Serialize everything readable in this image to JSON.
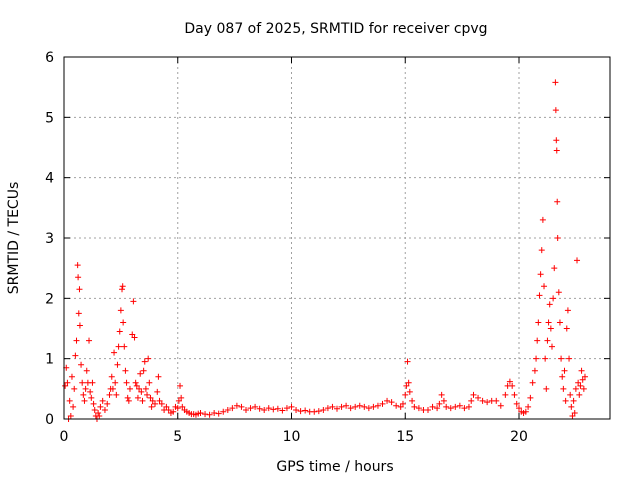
{
  "chart_data": {
    "type": "scatter",
    "title": "Day 087 of 2025, SRMTID for receiver cpvg",
    "xlabel": "GPS time / hours",
    "ylabel": "SRMTID / TECUs",
    "xlim": [
      0,
      24
    ],
    "ylim": [
      0,
      6
    ],
    "xticks": [
      0,
      5,
      10,
      15,
      20
    ],
    "yticks": [
      0,
      1,
      2,
      3,
      4,
      5,
      6
    ],
    "grid": true,
    "marker": "+",
    "color": "#ff0000",
    "series": [
      {
        "name": "SRMTID",
        "points": [
          [
            0.05,
            0.55
          ],
          [
            0.1,
            0.85
          ],
          [
            0.15,
            0.6
          ],
          [
            0.2,
            0.0
          ],
          [
            0.25,
            0.3
          ],
          [
            0.3,
            0.05
          ],
          [
            0.35,
            0.7
          ],
          [
            0.4,
            0.2
          ],
          [
            0.45,
            0.5
          ],
          [
            0.5,
            1.05
          ],
          [
            0.55,
            1.3
          ],
          [
            0.6,
            2.55
          ],
          [
            0.62,
            2.35
          ],
          [
            0.65,
            1.75
          ],
          [
            0.68,
            2.15
          ],
          [
            0.7,
            1.55
          ],
          [
            0.75,
            0.9
          ],
          [
            0.8,
            0.6
          ],
          [
            0.85,
            0.4
          ],
          [
            0.9,
            0.3
          ],
          [
            0.95,
            0.5
          ],
          [
            1.0,
            0.8
          ],
          [
            1.05,
            0.6
          ],
          [
            1.1,
            1.3
          ],
          [
            1.15,
            0.45
          ],
          [
            1.2,
            0.35
          ],
          [
            1.25,
            0.6
          ],
          [
            1.3,
            0.25
          ],
          [
            1.35,
            0.15
          ],
          [
            1.4,
            0.05
          ],
          [
            1.45,
            0.0
          ],
          [
            1.5,
            0.1
          ],
          [
            1.55,
            0.05
          ],
          [
            1.6,
            0.2
          ],
          [
            1.7,
            0.3
          ],
          [
            1.8,
            0.15
          ],
          [
            1.9,
            0.25
          ],
          [
            2.0,
            0.4
          ],
          [
            2.05,
            0.5
          ],
          [
            2.1,
            0.7
          ],
          [
            2.15,
            0.5
          ],
          [
            2.2,
            1.1
          ],
          [
            2.25,
            0.6
          ],
          [
            2.3,
            0.4
          ],
          [
            2.35,
            0.9
          ],
          [
            2.4,
            1.2
          ],
          [
            2.45,
            1.45
          ],
          [
            2.5,
            1.8
          ],
          [
            2.55,
            2.15
          ],
          [
            2.58,
            2.2
          ],
          [
            2.6,
            1.6
          ],
          [
            2.65,
            1.2
          ],
          [
            2.7,
            0.8
          ],
          [
            2.75,
            0.6
          ],
          [
            2.8,
            0.35
          ],
          [
            2.85,
            0.3
          ],
          [
            2.9,
            0.5
          ],
          [
            3.0,
            1.4
          ],
          [
            3.05,
            1.95
          ],
          [
            3.1,
            1.35
          ],
          [
            3.15,
            0.6
          ],
          [
            3.2,
            0.55
          ],
          [
            3.25,
            0.35
          ],
          [
            3.3,
            0.5
          ],
          [
            3.35,
            0.75
          ],
          [
            3.4,
            0.45
          ],
          [
            3.45,
            0.3
          ],
          [
            3.5,
            0.8
          ],
          [
            3.55,
            0.95
          ],
          [
            3.6,
            0.5
          ],
          [
            3.65,
            0.4
          ],
          [
            3.7,
            1.0
          ],
          [
            3.75,
            0.6
          ],
          [
            3.8,
            0.35
          ],
          [
            3.85,
            0.2
          ],
          [
            3.9,
            0.3
          ],
          [
            4.0,
            0.25
          ],
          [
            4.1,
            0.45
          ],
          [
            4.15,
            0.7
          ],
          [
            4.2,
            0.3
          ],
          [
            4.3,
            0.25
          ],
          [
            4.4,
            0.15
          ],
          [
            4.5,
            0.2
          ],
          [
            4.6,
            0.15
          ],
          [
            4.7,
            0.1
          ],
          [
            4.8,
            0.12
          ],
          [
            4.9,
            0.2
          ],
          [
            5.0,
            0.18
          ],
          [
            5.05,
            0.3
          ],
          [
            5.1,
            0.55
          ],
          [
            5.15,
            0.35
          ],
          [
            5.2,
            0.2
          ],
          [
            5.3,
            0.15
          ],
          [
            5.4,
            0.12
          ],
          [
            5.5,
            0.1
          ],
          [
            5.6,
            0.08
          ],
          [
            5.7,
            0.08
          ],
          [
            5.8,
            0.07
          ],
          [
            5.9,
            0.09
          ],
          [
            6.0,
            0.1
          ],
          [
            6.2,
            0.08
          ],
          [
            6.4,
            0.07
          ],
          [
            6.6,
            0.1
          ],
          [
            6.8,
            0.09
          ],
          [
            7.0,
            0.12
          ],
          [
            7.2,
            0.15
          ],
          [
            7.4,
            0.18
          ],
          [
            7.6,
            0.22
          ],
          [
            7.8,
            0.2
          ],
          [
            8.0,
            0.15
          ],
          [
            8.2,
            0.18
          ],
          [
            8.4,
            0.2
          ],
          [
            8.6,
            0.17
          ],
          [
            8.8,
            0.15
          ],
          [
            9.0,
            0.18
          ],
          [
            9.2,
            0.16
          ],
          [
            9.4,
            0.17
          ],
          [
            9.6,
            0.14
          ],
          [
            9.8,
            0.18
          ],
          [
            10.0,
            0.2
          ],
          [
            10.2,
            0.15
          ],
          [
            10.4,
            0.13
          ],
          [
            10.6,
            0.14
          ],
          [
            10.8,
            0.12
          ],
          [
            11.0,
            0.12
          ],
          [
            11.2,
            0.13
          ],
          [
            11.4,
            0.15
          ],
          [
            11.6,
            0.18
          ],
          [
            11.8,
            0.2
          ],
          [
            12.0,
            0.17
          ],
          [
            12.2,
            0.2
          ],
          [
            12.4,
            0.22
          ],
          [
            12.6,
            0.18
          ],
          [
            12.8,
            0.2
          ],
          [
            13.0,
            0.22
          ],
          [
            13.2,
            0.2
          ],
          [
            13.4,
            0.18
          ],
          [
            13.6,
            0.2
          ],
          [
            13.8,
            0.22
          ],
          [
            14.0,
            0.25
          ],
          [
            14.2,
            0.3
          ],
          [
            14.4,
            0.28
          ],
          [
            14.6,
            0.22
          ],
          [
            14.8,
            0.2
          ],
          [
            14.9,
            0.25
          ],
          [
            15.0,
            0.4
          ],
          [
            15.05,
            0.55
          ],
          [
            15.1,
            0.95
          ],
          [
            15.15,
            0.6
          ],
          [
            15.2,
            0.45
          ],
          [
            15.3,
            0.3
          ],
          [
            15.4,
            0.2
          ],
          [
            15.6,
            0.18
          ],
          [
            15.8,
            0.15
          ],
          [
            16.0,
            0.15
          ],
          [
            16.2,
            0.2
          ],
          [
            16.4,
            0.18
          ],
          [
            16.5,
            0.25
          ],
          [
            16.6,
            0.4
          ],
          [
            16.7,
            0.3
          ],
          [
            16.8,
            0.2
          ],
          [
            17.0,
            0.18
          ],
          [
            17.2,
            0.2
          ],
          [
            17.4,
            0.22
          ],
          [
            17.6,
            0.18
          ],
          [
            17.8,
            0.2
          ],
          [
            17.9,
            0.3
          ],
          [
            18.0,
            0.4
          ],
          [
            18.2,
            0.35
          ],
          [
            18.4,
            0.3
          ],
          [
            18.6,
            0.28
          ],
          [
            18.8,
            0.3
          ],
          [
            19.0,
            0.3
          ],
          [
            19.2,
            0.22
          ],
          [
            19.4,
            0.4
          ],
          [
            19.5,
            0.55
          ],
          [
            19.6,
            0.62
          ],
          [
            19.7,
            0.55
          ],
          [
            19.8,
            0.4
          ],
          [
            19.9,
            0.25
          ],
          [
            20.0,
            0.18
          ],
          [
            20.1,
            0.12
          ],
          [
            20.2,
            0.1
          ],
          [
            20.3,
            0.12
          ],
          [
            20.4,
            0.2
          ],
          [
            20.5,
            0.35
          ],
          [
            20.6,
            0.6
          ],
          [
            20.7,
            0.8
          ],
          [
            20.75,
            1.0
          ],
          [
            20.8,
            1.3
          ],
          [
            20.85,
            1.6
          ],
          [
            20.9,
            2.05
          ],
          [
            20.95,
            2.4
          ],
          [
            21.0,
            2.8
          ],
          [
            21.05,
            3.3
          ],
          [
            21.1,
            2.2
          ],
          [
            21.15,
            1.0
          ],
          [
            21.2,
            0.5
          ],
          [
            21.25,
            1.3
          ],
          [
            21.3,
            1.6
          ],
          [
            21.35,
            1.9
          ],
          [
            21.4,
            1.5
          ],
          [
            21.45,
            1.2
          ],
          [
            21.5,
            2.0
          ],
          [
            21.55,
            2.5
          ],
          [
            21.6,
            5.58
          ],
          [
            21.62,
            5.12
          ],
          [
            21.64,
            4.62
          ],
          [
            21.66,
            4.45
          ],
          [
            21.68,
            3.6
          ],
          [
            21.7,
            3.0
          ],
          [
            21.75,
            2.1
          ],
          [
            21.8,
            1.6
          ],
          [
            21.85,
            1.0
          ],
          [
            21.9,
            0.7
          ],
          [
            21.95,
            0.5
          ],
          [
            22.0,
            0.8
          ],
          [
            22.05,
            0.3
          ],
          [
            22.1,
            1.5
          ],
          [
            22.15,
            1.8
          ],
          [
            22.2,
            1.0
          ],
          [
            22.25,
            0.4
          ],
          [
            22.3,
            0.2
          ],
          [
            22.35,
            0.05
          ],
          [
            22.4,
            0.3
          ],
          [
            22.45,
            0.1
          ],
          [
            22.5,
            0.5
          ],
          [
            22.55,
            2.63
          ],
          [
            22.6,
            0.6
          ],
          [
            22.65,
            0.4
          ],
          [
            22.7,
            0.55
          ],
          [
            22.75,
            0.8
          ],
          [
            22.8,
            0.65
          ],
          [
            22.85,
            0.5
          ],
          [
            22.9,
            0.7
          ]
        ]
      }
    ]
  }
}
